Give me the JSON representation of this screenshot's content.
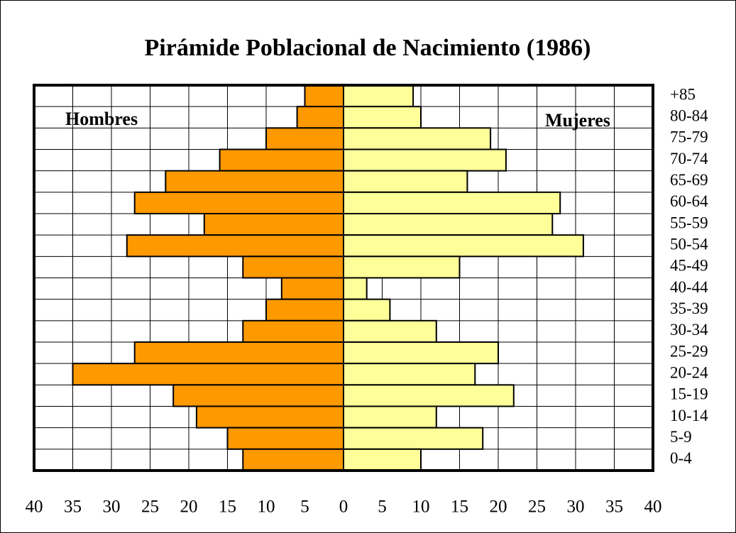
{
  "chart_data": {
    "type": "pyramid",
    "title": "Pirámide Poblacional de Nacimiento (1986)",
    "categories": [
      "+85",
      "80-84",
      "75-79",
      "70-74",
      "65-69",
      "60-64",
      "55-59",
      "50-54",
      "45-49",
      "40-44",
      "35-39",
      "30-34",
      "25-29",
      "20-24",
      "15-19",
      "10-14",
      "5-9",
      "0-4"
    ],
    "series": [
      {
        "name": "Hombres",
        "color": "#ff9900",
        "side": "left",
        "values": [
          5,
          6,
          10,
          16,
          23,
          27,
          18,
          28,
          13,
          8,
          10,
          13,
          27,
          35,
          22,
          19,
          15,
          13
        ]
      },
      {
        "name": "Mujeres",
        "color": "#ffff99",
        "side": "right",
        "values": [
          9,
          10,
          19,
          21,
          16,
          28,
          27,
          31,
          15,
          3,
          6,
          12,
          20,
          17,
          22,
          12,
          18,
          10
        ]
      }
    ],
    "xlim": [
      -40,
      40
    ],
    "xticks": [
      {
        "value": -40,
        "label": "40"
      },
      {
        "value": -35,
        "label": "35"
      },
      {
        "value": -30,
        "label": "30"
      },
      {
        "value": -25,
        "label": "25"
      },
      {
        "value": -20,
        "label": "20"
      },
      {
        "value": -15,
        "label": "15"
      },
      {
        "value": -10,
        "label": "10"
      },
      {
        "value": -5,
        "label": "5"
      },
      0,
      5,
      10,
      15,
      20,
      25,
      30,
      35,
      40
    ],
    "grid": true
  }
}
